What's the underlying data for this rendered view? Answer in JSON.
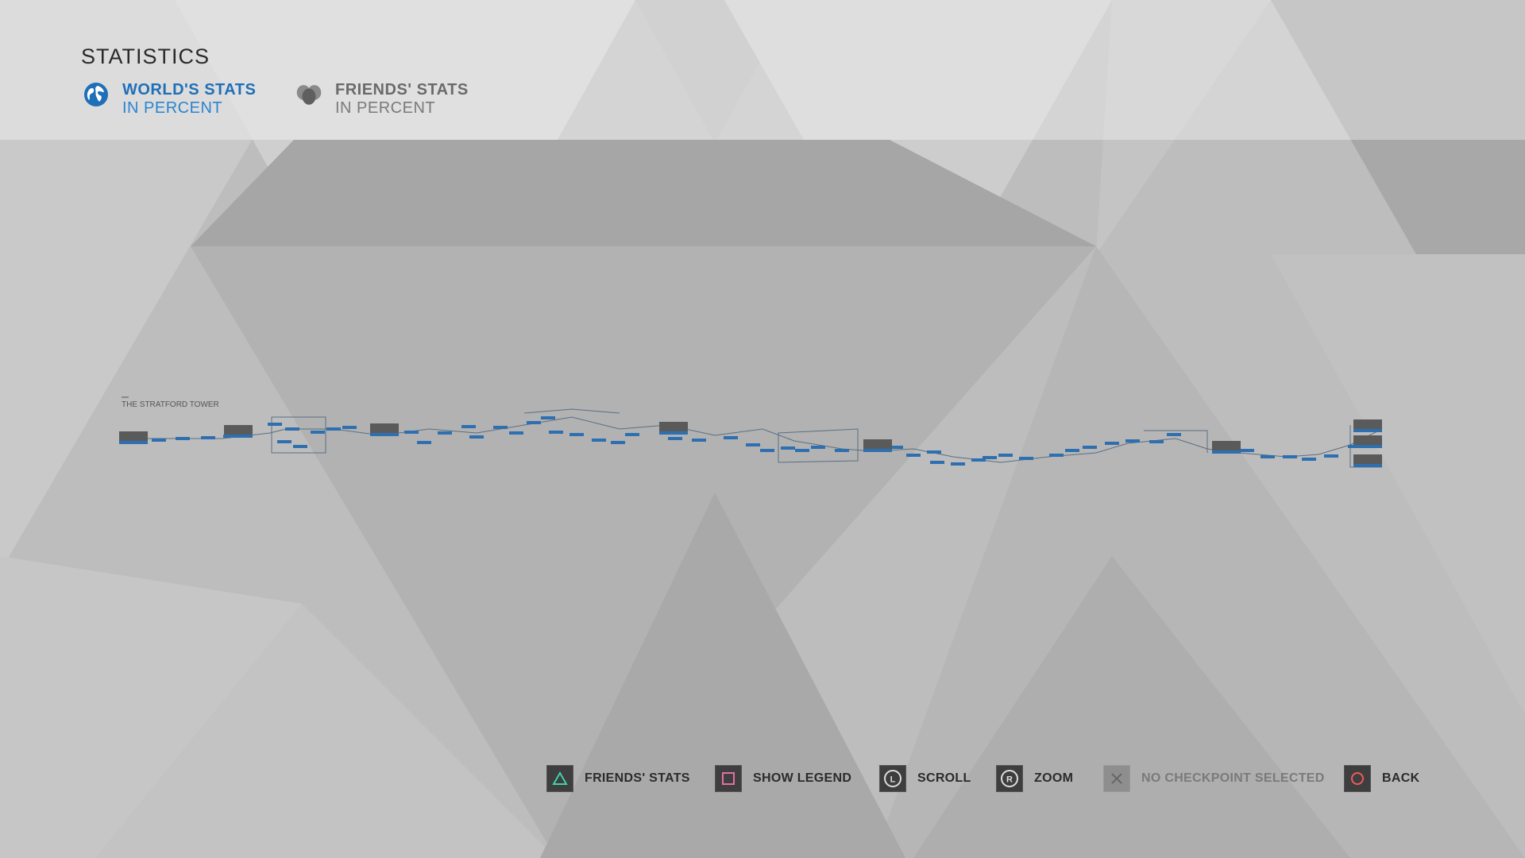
{
  "header": {
    "title": "STATISTICS",
    "tabs": [
      {
        "line1": "WORLD'S STATS",
        "line2": "IN PERCENT",
        "icon": "globe-icon",
        "active": true
      },
      {
        "line1": "FRIENDS' STATS",
        "line2": "IN PERCENT",
        "icon": "friends-icon",
        "active": false
      }
    ]
  },
  "flowchart": {
    "chapter_title": "THE STRATFORD TOWER"
  },
  "footer": {
    "controls": [
      {
        "button": "triangle",
        "label": "FRIENDS' STATS"
      },
      {
        "button": "square",
        "label": "SHOW LEGEND"
      },
      {
        "button": "left-stick",
        "label": "SCROLL"
      },
      {
        "button": "right-stick",
        "label": "ZOOM"
      },
      {
        "button": "cross",
        "label": "NO CHECKPOINT SELECTED"
      },
      {
        "button": "circle",
        "label": "BACK"
      }
    ]
  },
  "colors": {
    "accent": "#1f6fb8",
    "node_blue": "#2e6fb0",
    "triangle": "#3fd0a8",
    "square": "#e56fa4",
    "circle": "#ef5a5a"
  }
}
